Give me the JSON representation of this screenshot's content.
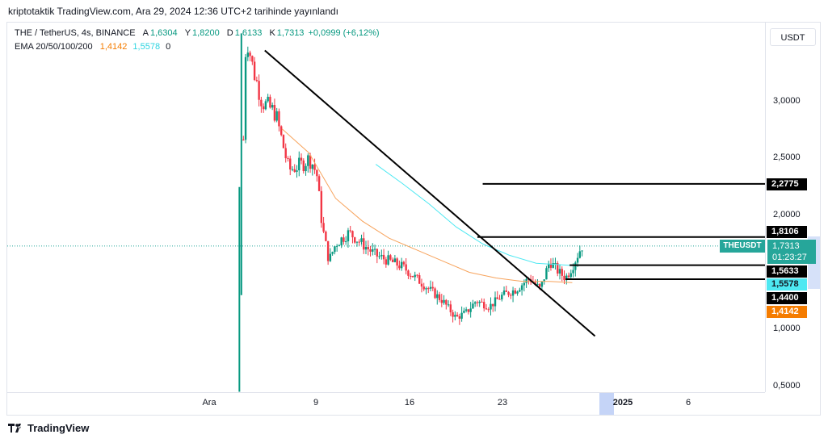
{
  "caption": "kriptotaktik TradingView.com, Ara 29, 2024 12:36 UTC+2 tarihinde yayınlandı",
  "legend": {
    "symbol": "THE / TetherUS, 4s, BINANCE",
    "open_key": "A",
    "open": "1,6304",
    "high_key": "Y",
    "high": "1,8200",
    "low_key": "D",
    "low": "1,6133",
    "close_key": "K",
    "close": "1,7313",
    "change": "+0,0999 (+6,12%)",
    "ema_label": "EMA 20/50/100/200",
    "ema1": "1,4142",
    "ema2": "1,5578",
    "ema3": "0"
  },
  "currency_button": "USDT",
  "price_ticks": [
    "3,0000",
    "2,5000",
    "2,0000",
    "1,0000",
    "0,5000"
  ],
  "price_labels": [
    {
      "text": "2,2775",
      "bg": "#000000",
      "fg": "#ffffff"
    },
    {
      "text": "1,8106",
      "bg": "#000000",
      "fg": "#ffffff"
    },
    {
      "text": "1,5633",
      "bg": "#000000",
      "fg": "#ffffff"
    },
    {
      "text": "1,5578",
      "bg": "#4de8f2",
      "fg": "#131722"
    },
    {
      "text": "1,4400",
      "bg": "#000000",
      "fg": "#ffffff"
    },
    {
      "text": "1,4142",
      "bg": "#f57c00",
      "fg": "#ffffff"
    }
  ],
  "symbol_tag": "THEUSDT",
  "last_price": "1,7313",
  "countdown": "01:23:27",
  "time_ticks": [
    {
      "text": "Ara",
      "bold": false
    },
    {
      "text": "9",
      "bold": false
    },
    {
      "text": "16",
      "bold": false
    },
    {
      "text": "23",
      "bold": false
    },
    {
      "text": "2025",
      "bold": true
    },
    {
      "text": "6",
      "bold": false
    }
  ],
  "footer": "TradingView",
  "colors": {
    "up": "#089981",
    "down": "#f23645",
    "ema_orange": "#f7a35c",
    "ema_cyan": "#4de8f2",
    "trendline": "#000000",
    "last_price_line": "#26a69a"
  },
  "chart_data": {
    "type": "candlestick",
    "title": "THE / TetherUS, 4s, BINANCE",
    "ylim": [
      0.5,
      3.5
    ],
    "x_ticks": [
      "Ara",
      "9",
      "16",
      "23",
      "2025",
      "6"
    ],
    "candles_note": "approximate closing path (day index, price)",
    "series": [
      {
        "name": "THE/USDT close",
        "x": [
          3.8,
          4.0,
          4.3,
          4.8,
          5.5,
          6.5,
          7.5,
          8.5,
          9.0,
          9.3,
          9.6,
          10.0,
          10.5,
          11.0,
          12.0,
          13.0,
          14.0,
          15.0,
          16.0,
          17.0,
          18.0,
          19.0,
          20.0,
          20.8,
          21.5,
          22.5,
          23.5,
          24.5,
          25.5,
          26.3,
          27.0,
          27.7,
          28.2,
          28.7,
          29.4
        ],
        "y": [
          0.45,
          2.2,
          3.6,
          3.3,
          3.0,
          2.9,
          2.4,
          2.45,
          2.5,
          2.45,
          2.35,
          1.9,
          1.6,
          1.75,
          1.85,
          1.75,
          1.65,
          1.6,
          1.55,
          1.45,
          1.35,
          1.25,
          1.1,
          1.15,
          1.25,
          1.2,
          1.3,
          1.35,
          1.45,
          1.35,
          1.6,
          1.5,
          1.45,
          1.55,
          1.73
        ]
      },
      {
        "name": "EMA",
        "x": [
          7.0,
          9.0,
          11.0,
          13.0,
          15.0,
          17.0,
          19.0,
          21.0,
          23.0,
          25.0,
          27.0,
          28.7
        ],
        "y": [
          2.76,
          2.55,
          2.15,
          1.95,
          1.8,
          1.7,
          1.6,
          1.5,
          1.45,
          1.42,
          1.42,
          1.41
        ]
      },
      {
        "name": "EMA",
        "x": [
          14.0,
          16.0,
          18.0,
          20.0,
          22.0,
          24.0,
          26.0,
          28.7
        ],
        "y": [
          2.45,
          2.28,
          2.1,
          1.9,
          1.75,
          1.65,
          1.58,
          1.56
        ]
      }
    ],
    "trendline": {
      "x": [
        5.7,
        30.4
      ],
      "y": [
        3.45,
        0.94
      ]
    },
    "horizontal_levels": [
      2.2775,
      1.8106,
      1.5633,
      1.44
    ]
  }
}
